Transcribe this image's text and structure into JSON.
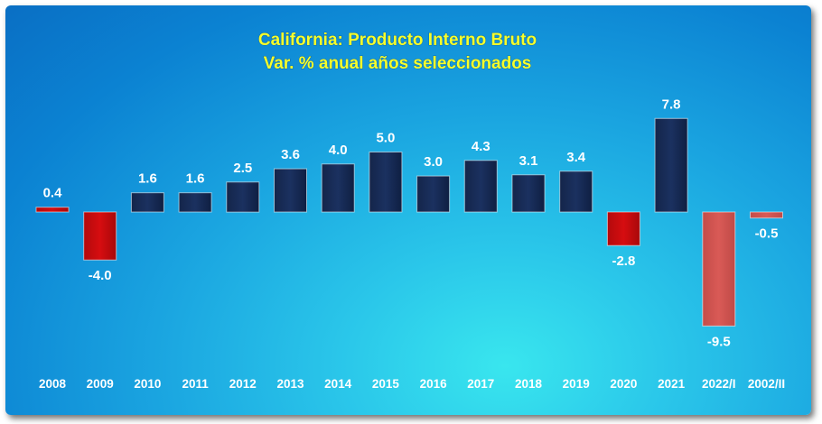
{
  "chart_data": {
    "type": "bar",
    "title": "California: Producto Interno Bruto",
    "subtitle": "Var. % anual años seleccionados",
    "categories": [
      "2008",
      "2009",
      "2010",
      "2011",
      "2012",
      "2013",
      "2014",
      "2015",
      "2016",
      "2017",
      "2018",
      "2019",
      "2020",
      "2021",
      "2022/I",
      "2002/II"
    ],
    "values": [
      0.4,
      -4.0,
      1.6,
      1.6,
      2.5,
      3.6,
      4.0,
      5.0,
      3.0,
      4.3,
      3.1,
      3.4,
      -2.8,
      7.8,
      -9.5,
      -0.5
    ],
    "value_labels": [
      "0.4",
      "-4.0",
      "1.6",
      "1.6",
      "2.5",
      "3.6",
      "4.0",
      "5.0",
      "3.0",
      "4.3",
      "3.1",
      "3.4",
      "-2.8",
      "7.8",
      "-9.5",
      "-0.5"
    ],
    "xlabel": "",
    "ylabel": "",
    "ylim": [
      -10,
      10
    ],
    "grid": false,
    "legend": "none",
    "colors": {
      "positive": "#1b3160",
      "negative": "#d60d10",
      "negative_light": "#d95a56",
      "title": "#f6ff2b",
      "labels": "#ffffff"
    },
    "bar_color_roles": [
      "negative",
      "negative",
      "positive",
      "positive",
      "positive",
      "positive",
      "positive",
      "positive",
      "positive",
      "positive",
      "positive",
      "positive",
      "negative",
      "positive",
      "negative_light",
      "negative_light"
    ]
  }
}
